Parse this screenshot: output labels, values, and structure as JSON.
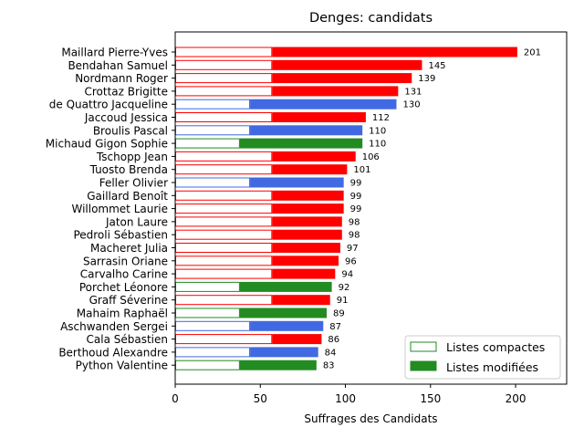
{
  "chart_data": {
    "type": "bar",
    "orientation": "horizontal",
    "stacked": true,
    "title": "Denges: candidats",
    "xlabel": "Suffrages des Candidats",
    "ylabel": "",
    "xlim": [
      0,
      230
    ],
    "xticks": [
      0,
      50,
      100,
      150,
      200
    ],
    "grid": false,
    "legend": {
      "placement": "bottom-right",
      "entries": [
        {
          "label": "Listes compactes",
          "style": "outline"
        },
        {
          "label": "Listes modifiées",
          "style": "filled"
        }
      ]
    },
    "colors": {
      "red": "#ff0000",
      "blue": "#4169e1",
      "green": "#228b22"
    },
    "candidates": [
      {
        "name": "Maillard Pierre-Yves",
        "compact": 57,
        "total": 201,
        "color": "red"
      },
      {
        "name": "Bendahan Samuel",
        "compact": 57,
        "total": 145,
        "color": "red"
      },
      {
        "name": "Nordmann Roger",
        "compact": 57,
        "total": 139,
        "color": "red"
      },
      {
        "name": "Crottaz Brigitte",
        "compact": 57,
        "total": 131,
        "color": "red"
      },
      {
        "name": "de Quattro Jacqueline",
        "compact": 44,
        "total": 130,
        "color": "blue"
      },
      {
        "name": "Jaccoud Jessica",
        "compact": 57,
        "total": 112,
        "color": "red"
      },
      {
        "name": "Broulis Pascal",
        "compact": 44,
        "total": 110,
        "color": "blue"
      },
      {
        "name": "Michaud Gigon Sophie",
        "compact": 38,
        "total": 110,
        "color": "green"
      },
      {
        "name": "Tschopp Jean",
        "compact": 57,
        "total": 106,
        "color": "red"
      },
      {
        "name": "Tuosto Brenda",
        "compact": 57,
        "total": 101,
        "color": "red"
      },
      {
        "name": "Feller Olivier",
        "compact": 44,
        "total": 99,
        "color": "blue"
      },
      {
        "name": "Gaillard Benoît",
        "compact": 57,
        "total": 99,
        "color": "red"
      },
      {
        "name": "Willommet Laurie",
        "compact": 57,
        "total": 99,
        "color": "red"
      },
      {
        "name": "Jaton Laure",
        "compact": 57,
        "total": 98,
        "color": "red"
      },
      {
        "name": "Pedroli Sébastien",
        "compact": 57,
        "total": 98,
        "color": "red"
      },
      {
        "name": "Macheret Julia",
        "compact": 57,
        "total": 97,
        "color": "red"
      },
      {
        "name": "Sarrasin Oriane",
        "compact": 57,
        "total": 96,
        "color": "red"
      },
      {
        "name": "Carvalho Carine",
        "compact": 57,
        "total": 94,
        "color": "red"
      },
      {
        "name": "Porchet Léonore",
        "compact": 38,
        "total": 92,
        "color": "green"
      },
      {
        "name": "Graff Séverine",
        "compact": 57,
        "total": 91,
        "color": "red"
      },
      {
        "name": "Mahaim Raphaël",
        "compact": 38,
        "total": 89,
        "color": "green"
      },
      {
        "name": "Aschwanden Sergei",
        "compact": 44,
        "total": 87,
        "color": "blue"
      },
      {
        "name": "Cala Sébastien",
        "compact": 57,
        "total": 86,
        "color": "red"
      },
      {
        "name": "Berthoud Alexandre",
        "compact": 44,
        "total": 84,
        "color": "blue"
      },
      {
        "name": "Python Valentine",
        "compact": 38,
        "total": 83,
        "color": "green"
      }
    ]
  }
}
